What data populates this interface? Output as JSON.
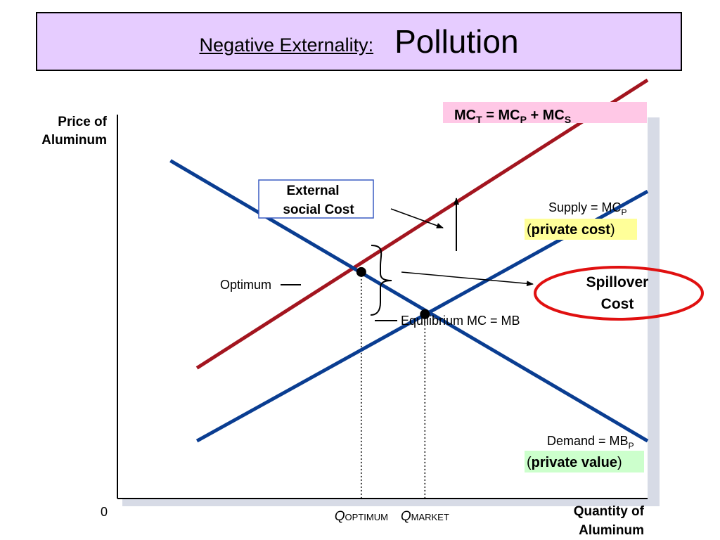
{
  "title": {
    "prefix": "Negative Externality:",
    "main": "Pollution"
  },
  "colors": {
    "title_bg": "#e6ccff",
    "demand_supply": "#0a3d91",
    "total_cost": "#a3151f",
    "ellipse": "#e01010",
    "pink_box": "#ffc8e6",
    "yellow_box": "#ffff99",
    "green_box": "#ccffcc"
  },
  "chart_data": {
    "type": "line",
    "xlabel": [
      "Quantity of",
      "Aluminum"
    ],
    "ylabel": [
      "Price of",
      "Aluminum"
    ],
    "origin_label": "0",
    "xlim": [
      0,
      10
    ],
    "ylim": [
      0,
      10
    ],
    "series": [
      {
        "key": "mct",
        "label_parts": [
          "MC",
          "T",
          " =  MC",
          "P",
          " + MC",
          "S"
        ],
        "points": [
          [
            1.5,
            3.4
          ],
          [
            10,
            10.9
          ]
        ]
      },
      {
        "key": "supply",
        "label_parts": [
          "Supply = MC",
          "P"
        ],
        "sublabel_bold": "private cost",
        "points": [
          [
            1.5,
            1.5
          ],
          [
            10,
            8.0
          ]
        ]
      },
      {
        "key": "demand",
        "label_parts": [
          "Demand = MB",
          "P"
        ],
        "sublabel_bold": "private value",
        "points": [
          [
            1.0,
            8.8
          ],
          [
            10,
            1.5
          ]
        ]
      }
    ],
    "points": [
      {
        "key": "optimum",
        "label": "Optimum",
        "x": 4.6,
        "y": 5.9
      },
      {
        "key": "equilibrium",
        "label": "Equilibrium  MC = MB",
        "x": 5.8,
        "y": 4.8
      }
    ],
    "x_ticks": [
      {
        "key": "q_opt",
        "q": "Q",
        "sub": "OPTIMUM",
        "x": 4.6
      },
      {
        "key": "q_mkt",
        "q": "Q",
        "sub": "MARKET",
        "x": 5.8
      }
    ],
    "annotations": {
      "external_social_cost": [
        "External",
        "social Cost"
      ],
      "spillover_cost": [
        "Spillover",
        "Cost"
      ]
    },
    "grid": false,
    "legend": "none"
  }
}
